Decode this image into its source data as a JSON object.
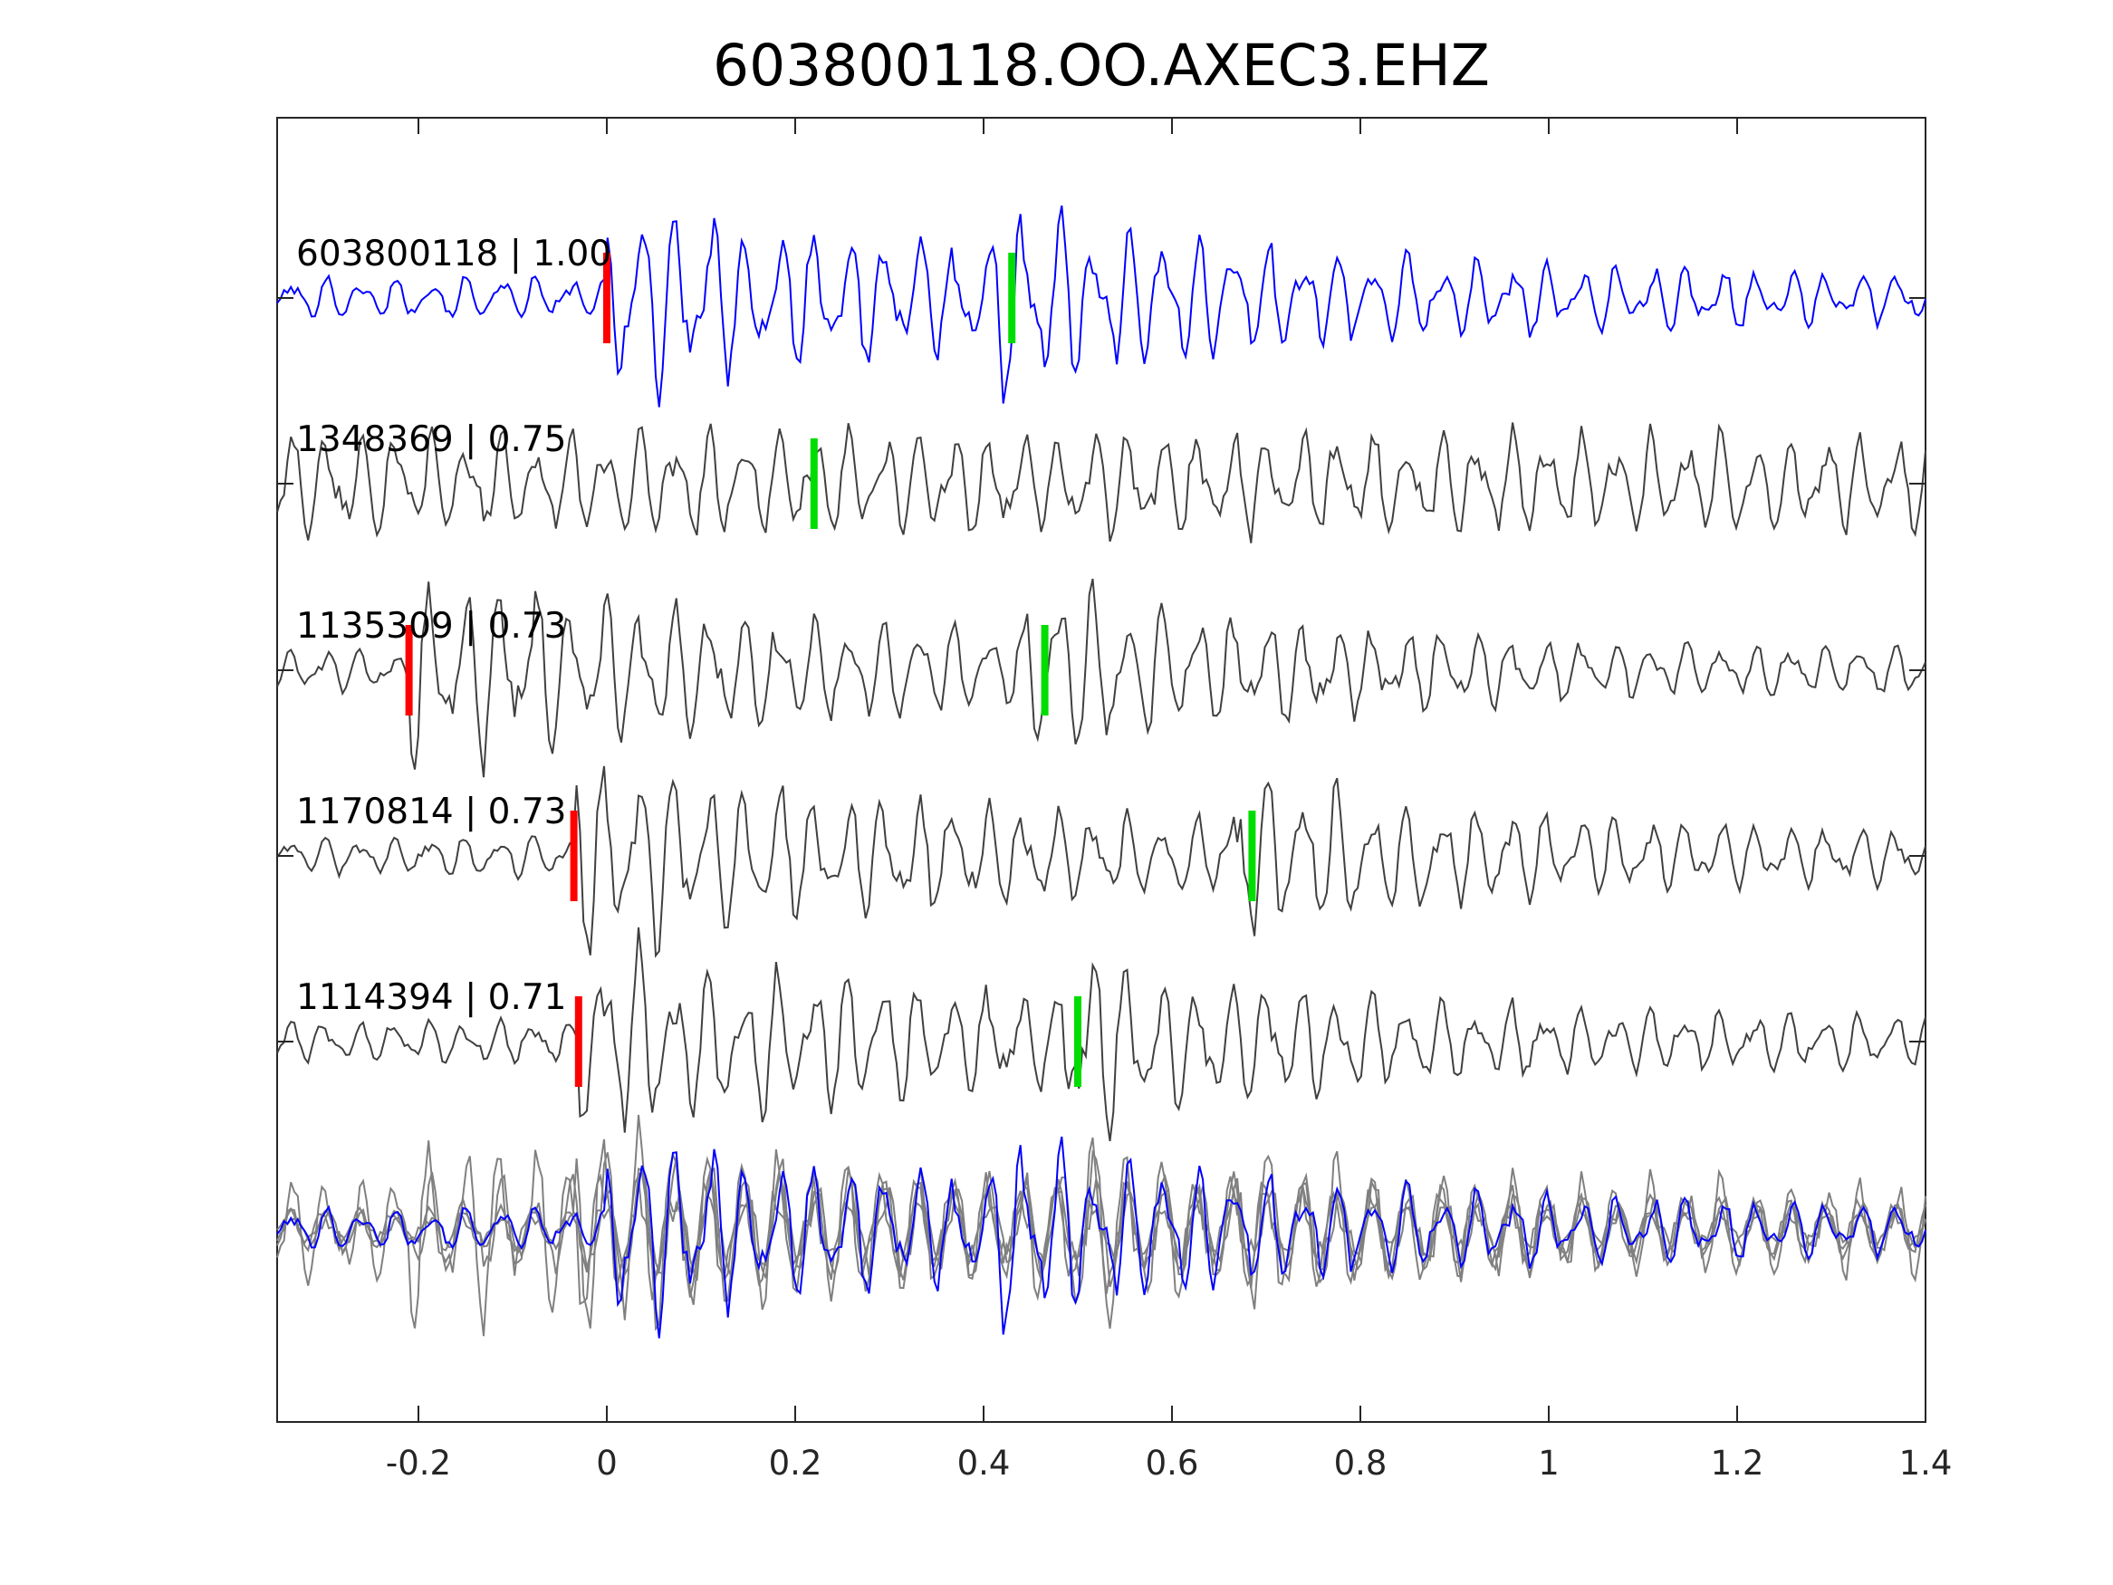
{
  "chart_data": {
    "type": "line",
    "title": "603800118.OO.AXEC3.EHZ",
    "xlim": [
      -0.35,
      1.4
    ],
    "x_ticks": [
      -0.2,
      0,
      0.2,
      0.4,
      0.6,
      0.8,
      1,
      1.2,
      1.4
    ],
    "x_tick_labels": [
      "-0.2",
      "0",
      "0.2",
      "0.4",
      "0.6",
      "0.8",
      "1",
      "1.2",
      "1.4"
    ],
    "grid": false,
    "colors": {
      "template": "#0000ff",
      "match": "#404040",
      "overlay": "#808080",
      "p_pick": "#ff0000",
      "s_pick": "#00dd00"
    },
    "traces": [
      {
        "label": "603800118 | 1.00",
        "role": "template",
        "p_pick": 0.0,
        "s_pick": 0.43
      },
      {
        "label": "1348369 | 0.75",
        "role": "match",
        "p_pick": null,
        "s_pick": 0.22
      },
      {
        "label": "1135309 | 0.73",
        "role": "match",
        "p_pick": -0.21,
        "s_pick": 0.465
      },
      {
        "label": "1170814 | 0.73",
        "role": "match",
        "p_pick": -0.035,
        "s_pick": 0.685
      },
      {
        "label": "1114394 | 0.71",
        "role": "match",
        "p_pick": -0.03,
        "s_pick": 0.5
      }
    ]
  }
}
